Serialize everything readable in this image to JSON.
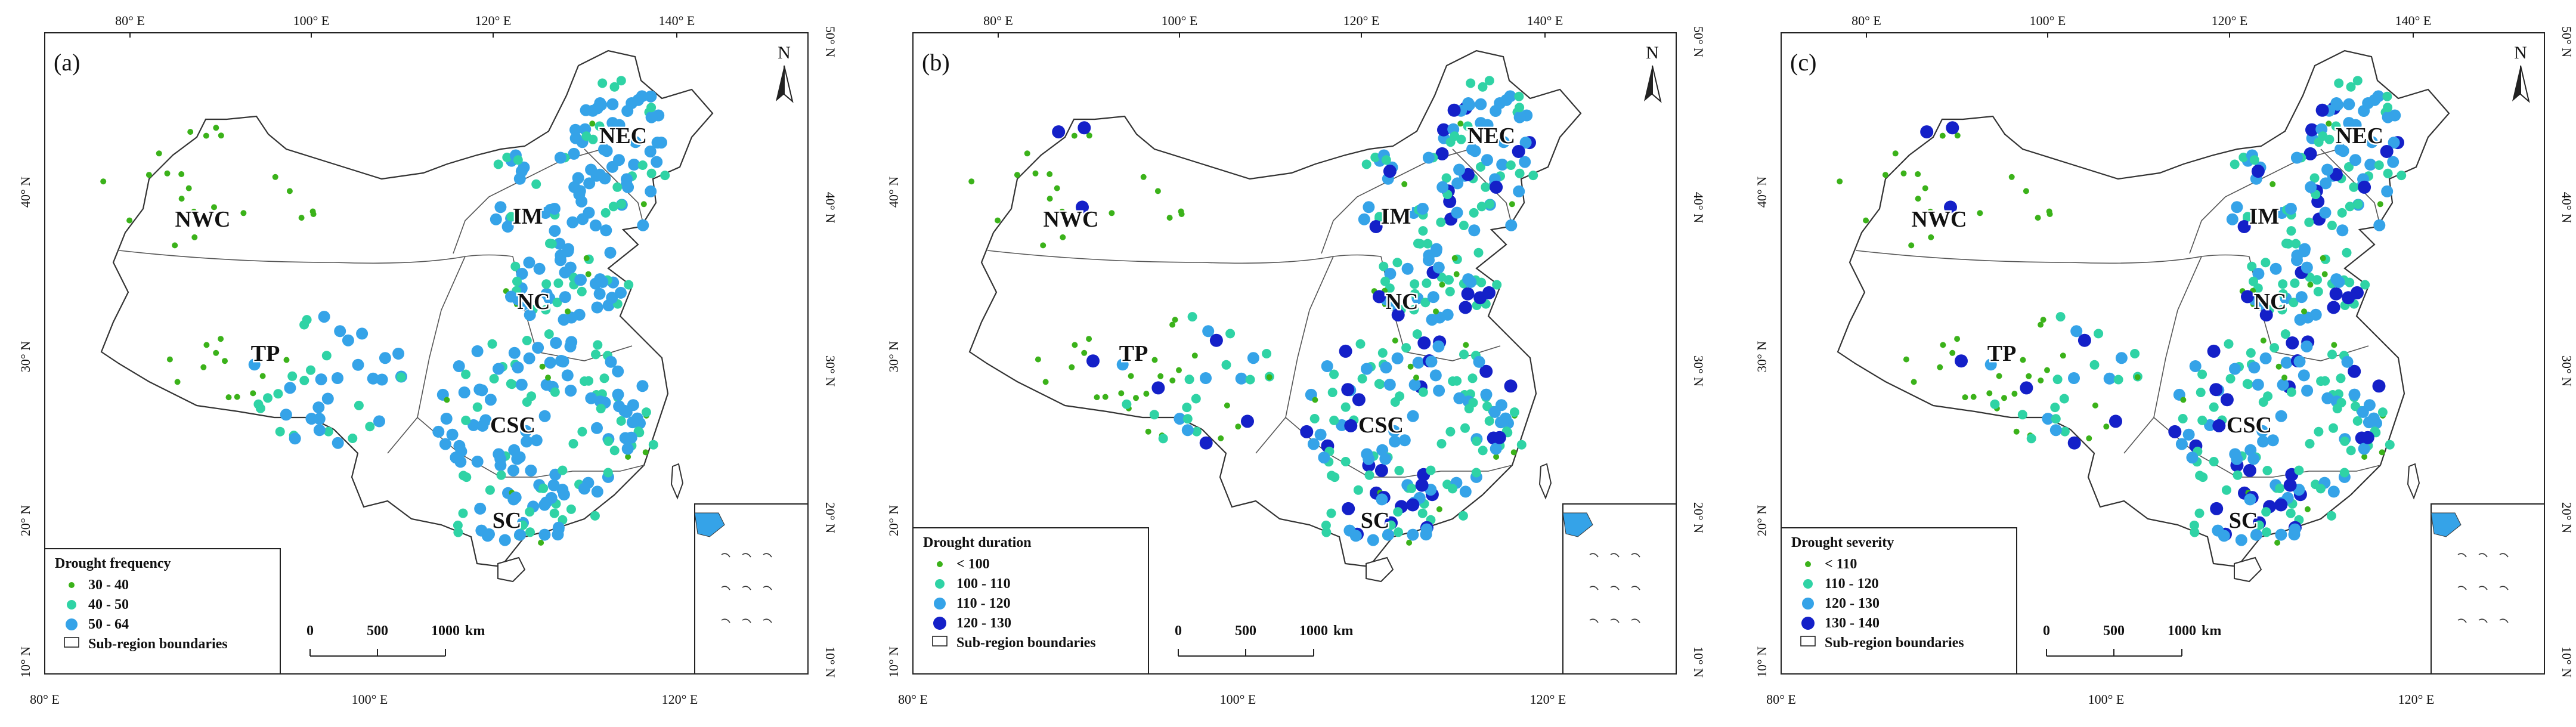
{
  "panels": [
    {
      "label": "(a)",
      "legend_title": "Drought frequency",
      "classes": [
        {
          "label": "30 - 40",
          "color": "#3bb21a",
          "size": "small"
        },
        {
          "label": "40 - 50",
          "color": "#2fd3a5",
          "size": "medium"
        },
        {
          "label": "50 - 64",
          "color": "#35a3e8",
          "size": "large"
        }
      ],
      "legend_boundary_label": "Sub-region boundaries"
    },
    {
      "label": "(b)",
      "legend_title": "Drought duration",
      "classes": [
        {
          "label": "< 100",
          "color": "#3bb21a",
          "size": "small"
        },
        {
          "label": "100 - 110",
          "color": "#2fd3a5",
          "size": "medium"
        },
        {
          "label": "110 - 120",
          "color": "#35a3e8",
          "size": "large"
        },
        {
          "label": "120 - 130",
          "color": "#1420c8",
          "size": "xlarge"
        }
      ],
      "legend_boundary_label": "Sub-region boundaries"
    },
    {
      "label": "(c)",
      "legend_title": "Drought severity",
      "classes": [
        {
          "label": "< 110",
          "color": "#3bb21a",
          "size": "small"
        },
        {
          "label": "110 - 120",
          "color": "#2fd3a5",
          "size": "medium"
        },
        {
          "label": "120 - 130",
          "color": "#35a3e8",
          "size": "large"
        },
        {
          "label": "130 - 140",
          "color": "#1420c8",
          "size": "xlarge"
        }
      ],
      "legend_boundary_label": "Sub-region boundaries"
    }
  ],
  "regions": [
    "NWC",
    "IM",
    "NEC",
    "NC",
    "TP",
    "CSC",
    "SC"
  ],
  "north_arrow": "N",
  "scale_bar": {
    "ticks": [
      "0",
      "500",
      "1000"
    ],
    "unit": "km"
  },
  "axes": {
    "top_lon": [
      "80° E",
      "100° E",
      "120° E",
      "140° E"
    ],
    "bottom_lon": [
      "80° E",
      "100° E",
      "120° E"
    ],
    "left_lat": [
      "40° N",
      "30° N",
      "20° N",
      "10° N"
    ],
    "right_lat": [
      "50° N",
      "40° N",
      "30° N",
      "20° N",
      "10° N"
    ]
  },
  "colors": {
    "green": "#3bb21a",
    "teal": "#2fd3a5",
    "blue": "#35a3e8",
    "navy": "#1420c8",
    "boundary": "#444444"
  }
}
